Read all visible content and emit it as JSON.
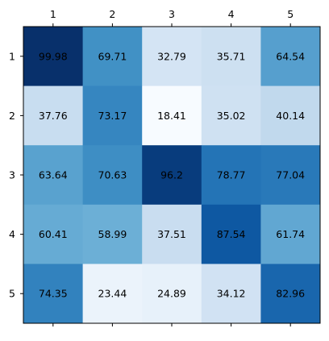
{
  "chart_data": {
    "type": "heatmap",
    "x_tick_labels": [
      "1",
      "2",
      "3",
      "4",
      "5"
    ],
    "y_tick_labels": [
      "1",
      "2",
      "3",
      "4",
      "5"
    ],
    "x_ticks_position": "top",
    "colormap": "Blues",
    "value_range": [
      18.41,
      99.98
    ],
    "grid": false,
    "values": [
      [
        99.98,
        69.71,
        32.79,
        35.71,
        64.54
      ],
      [
        37.76,
        73.17,
        18.41,
        35.02,
        40.14
      ],
      [
        63.64,
        70.63,
        96.2,
        78.77,
        77.04
      ],
      [
        60.41,
        58.99,
        37.51,
        87.54,
        61.74
      ],
      [
        74.35,
        23.44,
        24.89,
        34.12,
        82.96
      ]
    ]
  }
}
